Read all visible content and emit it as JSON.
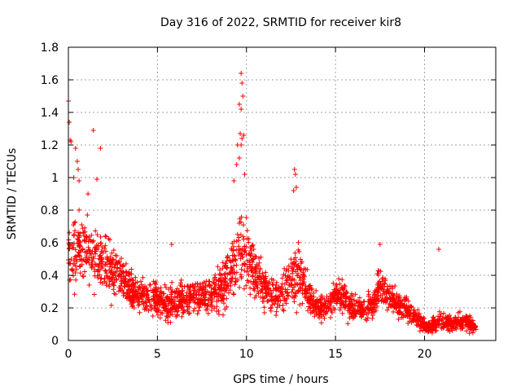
{
  "chart_data": {
    "type": "scatter",
    "title": "Day 316 of 2022, SRMTID for receiver kir8",
    "xlabel": "GPS time / hours",
    "ylabel": "SRMTID / TECUs",
    "xlim": [
      0,
      24
    ],
    "ylim": [
      0,
      1.8
    ],
    "xticks": [
      0,
      5,
      10,
      15,
      20
    ],
    "yticks": [
      0,
      0.2,
      0.4,
      0.6,
      0.8,
      1,
      1.2,
      1.4,
      1.6,
      1.8
    ],
    "xtick_labels": [
      "0",
      "5",
      "10",
      "15",
      "20"
    ],
    "ytick_labels": [
      "0",
      "0.2",
      "0.4",
      "0.6",
      "0.8",
      "1",
      "1.2",
      "1.4",
      "1.6",
      "1.8"
    ],
    "grid": true,
    "marker": "+",
    "color": "#ff0000",
    "x_max_data": 22.9,
    "envelope": {
      "x": [
        0.0,
        0.2,
        0.5,
        1.0,
        1.5,
        2.0,
        2.5,
        3.0,
        3.5,
        4.0,
        4.5,
        5.0,
        5.5,
        6.0,
        6.5,
        7.0,
        7.5,
        8.0,
        8.5,
        9.0,
        9.3,
        9.6,
        9.8,
        10.0,
        10.3,
        10.6,
        11.0,
        11.5,
        12.0,
        12.5,
        12.8,
        13.2,
        13.6,
        14.0,
        14.5,
        15.0,
        15.5,
        16.0,
        16.5,
        17.0,
        17.5,
        18.0,
        18.5,
        19.0,
        19.5,
        20.0,
        20.4,
        20.8,
        21.2,
        21.6,
        22.0,
        22.4,
        22.9
      ],
      "mid": [
        0.55,
        0.52,
        0.55,
        0.55,
        0.5,
        0.48,
        0.45,
        0.38,
        0.3,
        0.28,
        0.26,
        0.25,
        0.22,
        0.23,
        0.26,
        0.28,
        0.26,
        0.28,
        0.32,
        0.38,
        0.45,
        0.55,
        0.58,
        0.52,
        0.45,
        0.4,
        0.32,
        0.27,
        0.3,
        0.38,
        0.45,
        0.35,
        0.25,
        0.2,
        0.2,
        0.27,
        0.25,
        0.2,
        0.18,
        0.22,
        0.32,
        0.28,
        0.22,
        0.2,
        0.15,
        0.1,
        0.09,
        0.12,
        0.11,
        0.1,
        0.12,
        0.11,
        0.08
      ],
      "spread": [
        0.18,
        0.2,
        0.18,
        0.17,
        0.15,
        0.15,
        0.15,
        0.13,
        0.1,
        0.09,
        0.09,
        0.09,
        0.09,
        0.09,
        0.1,
        0.1,
        0.1,
        0.11,
        0.13,
        0.15,
        0.2,
        0.25,
        0.25,
        0.18,
        0.15,
        0.13,
        0.11,
        0.1,
        0.11,
        0.15,
        0.2,
        0.13,
        0.09,
        0.07,
        0.07,
        0.09,
        0.09,
        0.07,
        0.07,
        0.08,
        0.13,
        0.1,
        0.08,
        0.07,
        0.05,
        0.04,
        0.04,
        0.05,
        0.04,
        0.04,
        0.05,
        0.04,
        0.03
      ]
    },
    "peaks": [
      {
        "x": 0.0,
        "y": 1.47
      },
      {
        "x": 0.05,
        "y": 1.34
      },
      {
        "x": 0.1,
        "y": 1.23
      },
      {
        "x": 0.15,
        "y": 1.22
      },
      {
        "x": 0.4,
        "y": 1.18
      },
      {
        "x": 0.5,
        "y": 1.1
      },
      {
        "x": 0.55,
        "y": 1.05
      },
      {
        "x": 0.3,
        "y": 1.0
      },
      {
        "x": 0.6,
        "y": 0.98
      },
      {
        "x": 1.4,
        "y": 1.29
      },
      {
        "x": 1.8,
        "y": 1.18
      },
      {
        "x": 1.6,
        "y": 0.99
      },
      {
        "x": 1.1,
        "y": 0.9
      },
      {
        "x": 9.7,
        "y": 1.64
      },
      {
        "x": 9.75,
        "y": 1.58
      },
      {
        "x": 9.8,
        "y": 1.5
      },
      {
        "x": 9.6,
        "y": 1.45
      },
      {
        "x": 9.7,
        "y": 1.42
      },
      {
        "x": 9.65,
        "y": 1.27
      },
      {
        "x": 9.85,
        "y": 1.26
      },
      {
        "x": 9.75,
        "y": 1.24
      },
      {
        "x": 9.7,
        "y": 1.2
      },
      {
        "x": 9.5,
        "y": 1.2
      },
      {
        "x": 9.6,
        "y": 1.12
      },
      {
        "x": 9.45,
        "y": 1.08
      },
      {
        "x": 9.9,
        "y": 1.02
      },
      {
        "x": 9.3,
        "y": 0.98
      },
      {
        "x": 12.7,
        "y": 1.05
      },
      {
        "x": 12.75,
        "y": 1.02
      },
      {
        "x": 12.8,
        "y": 0.94
      },
      {
        "x": 12.65,
        "y": 0.92
      },
      {
        "x": 20.8,
        "y": 0.56
      },
      {
        "x": 17.5,
        "y": 0.59
      },
      {
        "x": 5.8,
        "y": 0.59
      }
    ]
  }
}
